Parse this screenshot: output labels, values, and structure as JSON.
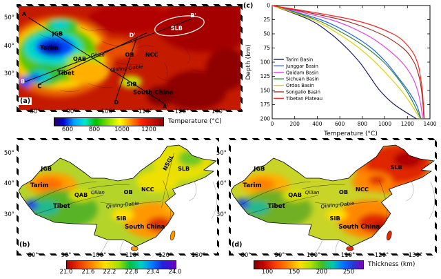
{
  "panels": {
    "a": {
      "tag": "(a)",
      "x_ticks": [
        "80°",
        "90°",
        "100°",
        "110°",
        "120°",
        "130°"
      ],
      "y_ticks": [
        "50°",
        "40°",
        "30°"
      ],
      "labels": {
        "A": "A",
        "A2": "A'",
        "B": "B",
        "B2": "B'",
        "C": "C",
        "D": "D",
        "D2": "D'",
        "JGB": "JGB",
        "Tarim": "Tarim",
        "QAB": "QAB",
        "Qilian": "Qilian",
        "OB": "OB",
        "NCC": "NCC",
        "Tibet": "Tibet",
        "QinlingDabie": "Qinling-Dabie",
        "SIB": "SIB",
        "SouthChina": "South China",
        "SLB": "SLB"
      },
      "colorbar": {
        "title": "Temperature (°C)",
        "ticks": [
          "600",
          "800",
          "1000",
          "1200"
        ]
      }
    },
    "b": {
      "tag": "(b)",
      "x_ticks": [
        "80°",
        "90°",
        "100°",
        "110°",
        "120°",
        "130°"
      ],
      "y_ticks": [
        "50°",
        "40°",
        "30°"
      ],
      "labels": {
        "JGB": "JGB",
        "Tarim": "Tarim",
        "QAB": "QAB",
        "Qilian": "Qilian",
        "OB": "OB",
        "NCC": "NCC",
        "Tibet": "Tibet",
        "QinlingDabie": "Qinling-Dabie",
        "SIB": "SIB",
        "SouthChina": "South China",
        "NSGL": "NSGL",
        "SLB": "SLB"
      },
      "colorbar": {
        "ticks": [
          "21.0",
          "21.6",
          "22.2",
          "22.8",
          "23.4",
          "24.0"
        ]
      }
    },
    "c": {
      "tag": "(c)"
    },
    "d": {
      "tag": "(d)",
      "x_ticks": [
        "80°",
        "90°",
        "100°",
        "110°",
        "120°",
        "130°"
      ],
      "y_ticks": [
        "50°",
        "40°",
        "30°"
      ],
      "labels": {
        "JGB": "JGB",
        "Tarim": "Tarim",
        "QAB": "QAB",
        "Qilian": "Qilian",
        "OB": "OB",
        "NCC": "NCC",
        "Tibet": "Tibet",
        "QinlingDabie": "Qinling-Dabie",
        "SIB": "SIB",
        "SouthChina": "South China",
        "SLB": "SLB"
      },
      "colorbar": {
        "title": "Thickness (km)",
        "ticks": [
          "100",
          "150",
          "200",
          "250"
        ]
      }
    }
  },
  "chart_data": {
    "type": "line",
    "panel": "c",
    "title": "",
    "xlabel": "Temperature (°C)",
    "ylabel": "Depth (km)",
    "xlim": [
      0,
      1400
    ],
    "ylim": [
      0,
      200
    ],
    "y_axis_inverted": true,
    "grid": false,
    "legend_position": "center-left",
    "x_ticks": [
      0,
      200,
      400,
      600,
      800,
      1000,
      1200,
      1400
    ],
    "y_ticks": [
      0,
      25,
      50,
      75,
      100,
      125,
      150,
      175,
      200
    ],
    "depths_km": [
      0,
      25,
      50,
      75,
      100,
      125,
      150,
      175,
      200
    ],
    "series": [
      {
        "name": "Tarim Basin",
        "color": "#191970",
        "temps_c": [
          0,
          330,
          520,
          660,
          775,
          865,
          955,
          1085,
          1280
        ]
      },
      {
        "name": "Junggar Basin",
        "color": "#2060ff",
        "temps_c": [
          0,
          430,
          690,
          880,
          1010,
          1110,
          1205,
          1280,
          1320
        ]
      },
      {
        "name": "Qaidam Basin",
        "color": "#e040e0",
        "temps_c": [
          0,
          520,
          820,
          1010,
          1150,
          1240,
          1290,
          1318,
          1335
        ]
      },
      {
        "name": "Sichuan Basin",
        "color": "#2e8b2e",
        "temps_c": [
          0,
          390,
          640,
          840,
          990,
          1100,
          1190,
          1260,
          1318
        ]
      },
      {
        "name": "Ordos Basin",
        "color": "#e0d000",
        "temps_c": [
          0,
          360,
          590,
          770,
          915,
          1035,
          1145,
          1235,
          1310
        ]
      },
      {
        "name": "Songalio Basin",
        "color": "#a03028",
        "temps_c": [
          0,
          610,
          960,
          1160,
          1258,
          1302,
          1325,
          1338,
          1346
        ]
      },
      {
        "name": "Tibetan Plateau",
        "color": "#ff2020",
        "temps_c": [
          0,
          710,
          1070,
          1220,
          1288,
          1315,
          1332,
          1342,
          1350
        ]
      }
    ]
  }
}
